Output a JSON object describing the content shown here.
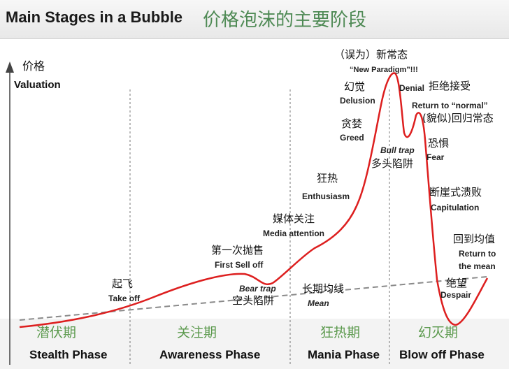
{
  "header": {
    "title_en": "Main Stages in a Bubble",
    "title_zh": "价格泡沫的主要阶段"
  },
  "axis": {
    "y_label_zh": "价格",
    "y_label_en": "Valuation"
  },
  "phases": [
    {
      "zh": "潜伏期",
      "en": "Stealth Phase"
    },
    {
      "zh": "关注期",
      "en": "Awareness Phase"
    },
    {
      "zh": "狂热期",
      "en": "Mania Phase"
    },
    {
      "zh": "幻灭期",
      "en": "Blow off Phase"
    }
  ],
  "annotations": {
    "take_off": {
      "zh": "起飞",
      "en": "Take off"
    },
    "first_sell_off": {
      "zh": "第一次抛售",
      "en": "First Sell off"
    },
    "bear_trap": {
      "en": "Bear trap",
      "zh": "空头陷阱"
    },
    "media_attention": {
      "zh": "媒体关注",
      "en": "Media attention"
    },
    "enthusiasm": {
      "zh": "狂热",
      "en": "Enthusiasm"
    },
    "mean": {
      "zh": "长期均线",
      "en": "Mean"
    },
    "greed": {
      "zh": "贪婪",
      "en": "Greed"
    },
    "delusion": {
      "zh": "幻觉",
      "en": "Delusion"
    },
    "new_paradigm": {
      "zh": "（误为）新常态",
      "en": "“New Paradigm”!!!"
    },
    "denial": {
      "en": "Denial",
      "zh": "拒绝接受"
    },
    "return_normal": {
      "en": "Return to “normal”",
      "zh": "(貌似)回归常态"
    },
    "bull_trap": {
      "en": "Bull trap",
      "zh": "多头陷阱"
    },
    "fear": {
      "zh": "恐惧",
      "en": "Fear"
    },
    "capitulation": {
      "zh": "断崖式溃败",
      "en": "Capitulation"
    },
    "return_mean": {
      "zh": "回到均值",
      "en_line1": "Return to",
      "en_line2": "the mean"
    },
    "despair": {
      "zh": "绝望",
      "en": "Despair"
    }
  },
  "colors": {
    "curve": "#dd1f1f",
    "mean_line": "#8a8a8a",
    "phase_divider": "#777777",
    "phase_zh": "#5c9a4e",
    "title_zh": "#4f8a55"
  }
}
